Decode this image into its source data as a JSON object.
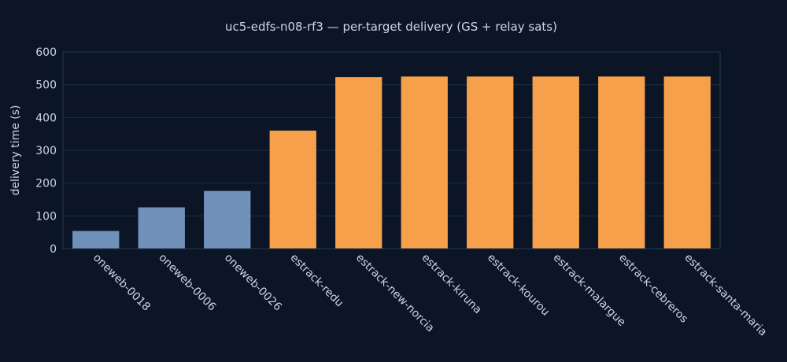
{
  "chart_data": {
    "type": "bar",
    "title": "uc5-edfs-n08-rf3 — per-target delivery (GS + relay sats)",
    "xlabel": "",
    "ylabel": "delivery time (s)",
    "ylim": [
      0,
      600
    ],
    "yticks": [
      0,
      100,
      200,
      300,
      400,
      500,
      600
    ],
    "grid": true,
    "legend": "none",
    "categories": [
      "oneweb-0018",
      "oneweb-0006",
      "oneweb-0026",
      "estrack-redu",
      "estrack-new-norcia",
      "estrack-kiruna",
      "estrack-kourou",
      "estrack-malargue",
      "estrack-cebreros",
      "estrack-santa-maria"
    ],
    "values": [
      54,
      126,
      176,
      360,
      523,
      525,
      525,
      525,
      525,
      525
    ],
    "bar_colors": [
      "#7092ba",
      "#7092ba",
      "#7092ba",
      "#f7a04b",
      "#f7a04b",
      "#f7a04b",
      "#f7a04b",
      "#f7a04b",
      "#f7a04b",
      "#f7a04b"
    ]
  },
  "colors": {
    "background": "#0b1526",
    "text": "#cdd6e4",
    "relay_sat": "#7092ba",
    "ground_station": "#f7a04b"
  }
}
